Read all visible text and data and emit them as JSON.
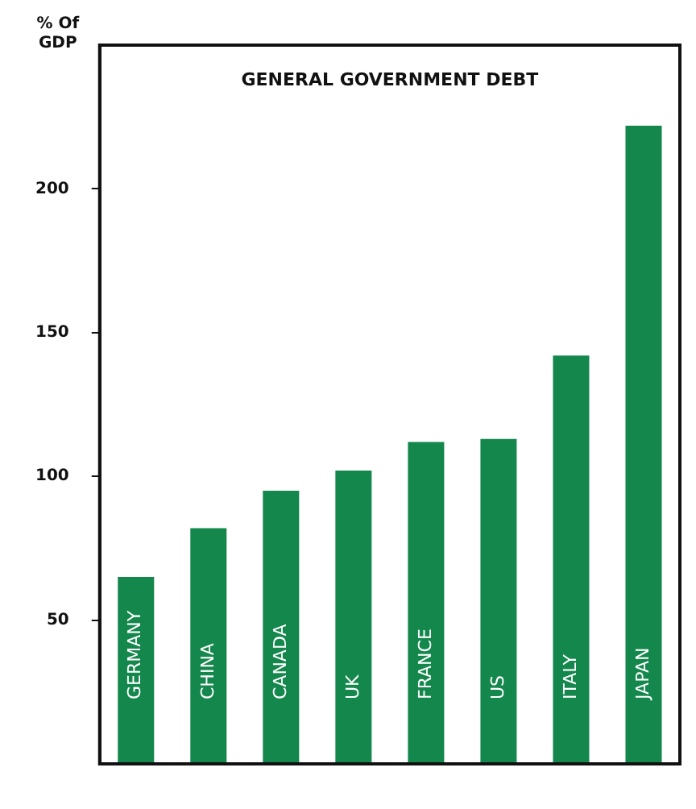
{
  "chart_data": {
    "type": "bar",
    "title": "GENERAL GOVERNMENT DEBT",
    "ylabel": "% Of GDP",
    "categories": [
      "GERMANY",
      "CHINA",
      "CANADA",
      "UK",
      "FRANCE",
      "US",
      "ITALY",
      "JAPAN"
    ],
    "values": [
      65,
      82,
      95,
      102,
      112,
      113,
      142,
      222
    ],
    "color": "#14874c",
    "ylim": [
      0,
      250
    ],
    "yticks": [
      50,
      100,
      150,
      200
    ],
    "grid": false,
    "legend": false
  }
}
